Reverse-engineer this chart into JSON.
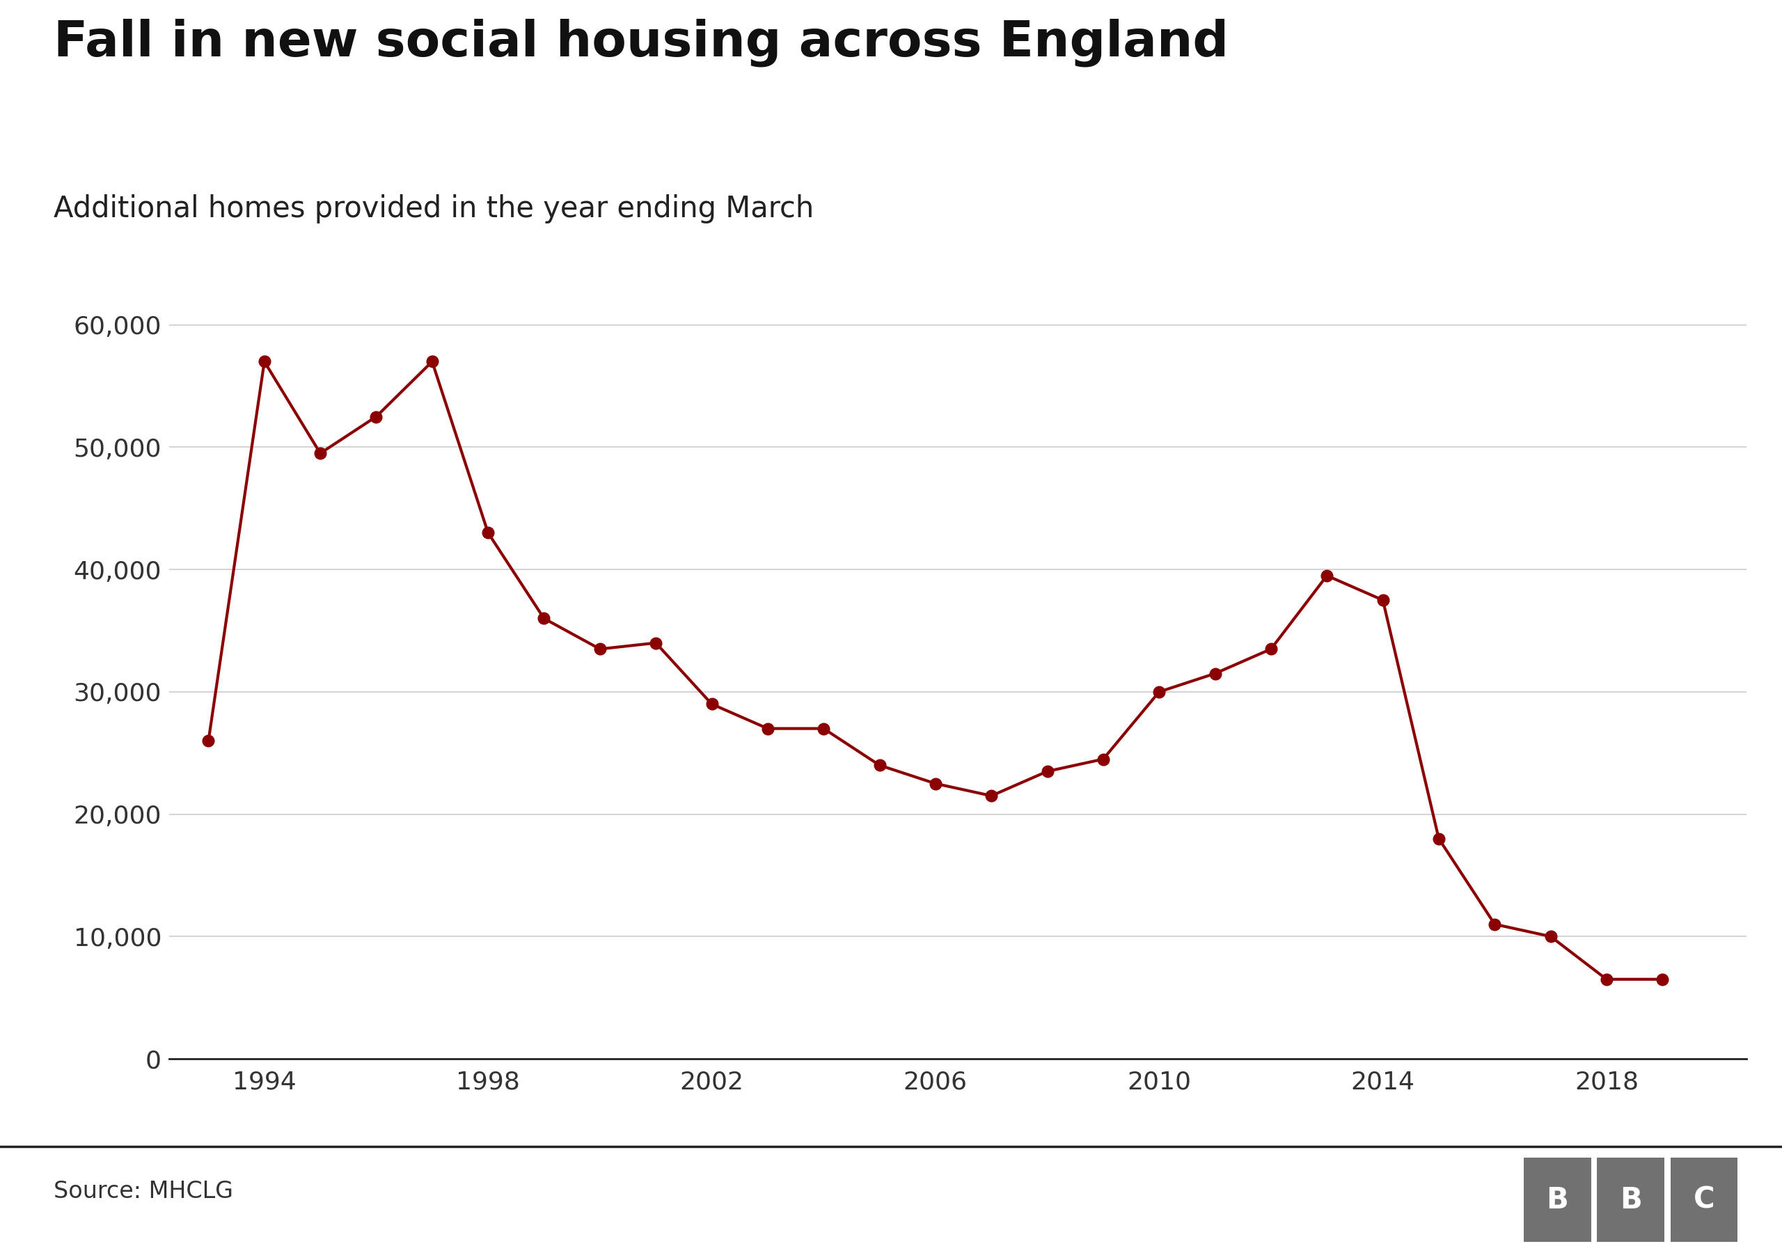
{
  "title": "Fall in new social housing across England",
  "subtitle": "Additional homes provided in the year ending March",
  "source": "Source: MHCLG",
  "line_color": "#8B0000",
  "background_color": "#ffffff",
  "years": [
    1993,
    1994,
    1995,
    1996,
    1997,
    1998,
    1999,
    2000,
    2001,
    2002,
    2003,
    2004,
    2005,
    2006,
    2007,
    2008,
    2009,
    2010,
    2011,
    2012,
    2013,
    2014,
    2015,
    2016,
    2017,
    2018,
    2019
  ],
  "values": [
    26000,
    57000,
    49500,
    52500,
    57000,
    43000,
    36000,
    33500,
    34000,
    29000,
    27000,
    27000,
    24000,
    22500,
    21500,
    23500,
    24500,
    30000,
    31500,
    33500,
    39500,
    37500,
    18000,
    11000,
    10000,
    6500,
    6500
  ],
  "ylim": [
    0,
    63000
  ],
  "yticks": [
    0,
    10000,
    20000,
    30000,
    40000,
    50000,
    60000
  ],
  "xticks": [
    1994,
    1998,
    2002,
    2006,
    2010,
    2014,
    2018
  ],
  "xlim": [
    1992.3,
    2020.5
  ],
  "grid_color": "#cccccc",
  "title_fontsize": 52,
  "subtitle_fontsize": 30,
  "tick_fontsize": 26,
  "source_fontsize": 24,
  "marker_size": 12,
  "line_width": 3.0,
  "bbc_color": "#717171"
}
